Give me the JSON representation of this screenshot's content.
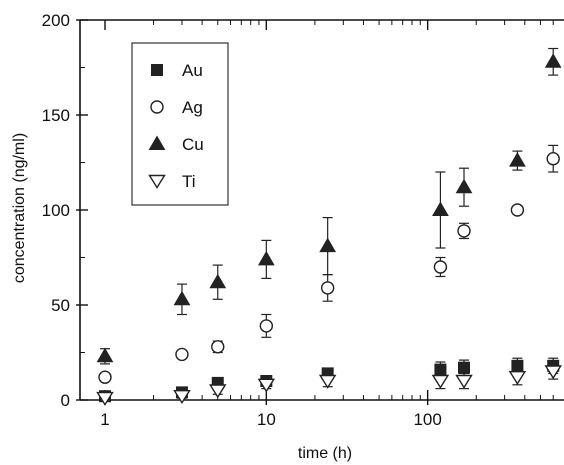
{
  "chart_data": {
    "type": "scatter",
    "title": "",
    "xlabel": "time (h)",
    "ylabel": "concentration (ng/ml)",
    "xscale": "log",
    "xlim": [
      0.7,
      700
    ],
    "ylim": [
      0,
      200
    ],
    "xticks": [
      1,
      10,
      100
    ],
    "xtick_labels": [
      "1",
      "10",
      "100"
    ],
    "yticks": [
      0,
      50,
      100,
      150,
      200
    ],
    "ytick_labels": [
      "0",
      "50",
      "100",
      "150",
      "200"
    ],
    "grid": false,
    "legend_position": "top-left",
    "series": [
      {
        "name": "Au",
        "marker": "filled-square",
        "x": [
          1,
          3,
          5,
          10,
          24,
          120,
          168,
          360,
          600
        ],
        "y": [
          2,
          4,
          9,
          10,
          14,
          16,
          17,
          18,
          18
        ],
        "err": [
          1,
          1,
          2,
          2,
          2,
          4,
          4,
          4,
          4
        ]
      },
      {
        "name": "Ag",
        "marker": "open-circle",
        "x": [
          1,
          3,
          5,
          10,
          24,
          120,
          168,
          360,
          600
        ],
        "y": [
          12,
          24,
          28,
          39,
          59,
          70,
          89,
          100,
          127
        ],
        "err": [
          2,
          2,
          3,
          6,
          7,
          5,
          4,
          2,
          7
        ]
      },
      {
        "name": "Cu",
        "marker": "filled-triangle-up",
        "x": [
          1,
          3,
          5,
          10,
          24,
          120,
          168,
          360,
          600
        ],
        "y": [
          23,
          53,
          62,
          74,
          81,
          100,
          112,
          126,
          178
        ],
        "err": [
          4,
          8,
          9,
          10,
          15,
          20,
          10,
          5,
          7
        ]
      },
      {
        "name": "Ti",
        "marker": "open-triangle-down",
        "x": [
          1,
          3,
          5,
          10,
          24,
          120,
          168,
          360,
          600
        ],
        "y": [
          1,
          2,
          5,
          8,
          10,
          10,
          10,
          12,
          15
        ],
        "err": [
          1,
          1,
          2,
          2,
          3,
          4,
          4,
          4,
          4
        ]
      }
    ]
  }
}
